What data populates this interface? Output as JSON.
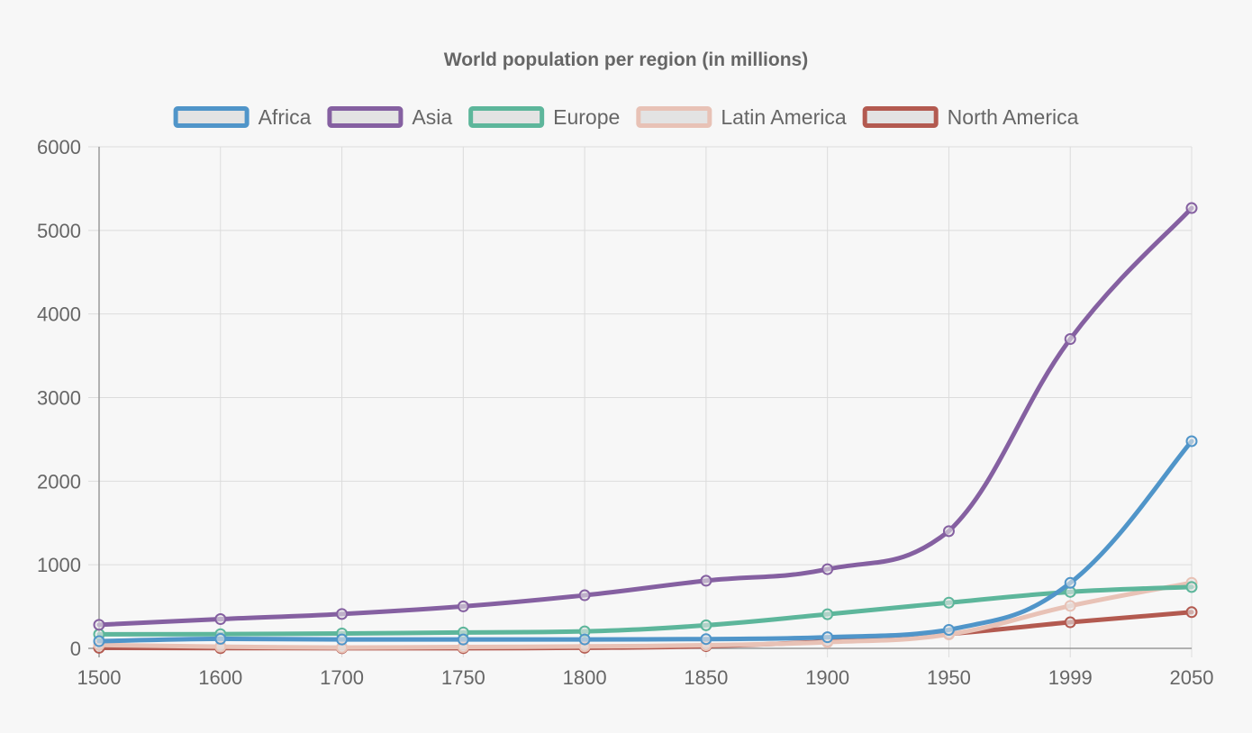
{
  "chart_data": {
    "type": "line",
    "title": "World population per region (in millions)",
    "categories": [
      "1500",
      "1600",
      "1700",
      "1750",
      "1800",
      "1850",
      "1900",
      "1950",
      "1999",
      "2050"
    ],
    "ylim": [
      0,
      6000
    ],
    "yticks": [
      0,
      1000,
      2000,
      3000,
      4000,
      5000,
      6000
    ],
    "grid": true,
    "legend_position": "top",
    "series": [
      {
        "name": "Africa",
        "color": "#5095c9",
        "values": [
          86,
          114,
          106,
          106,
          107,
          111,
          133,
          221,
          783,
          2478
        ]
      },
      {
        "name": "Asia",
        "color": "#8560a1",
        "values": [
          282,
          350,
          411,
          502,
          635,
          809,
          947,
          1402,
          3700,
          5267
        ]
      },
      {
        "name": "Europe",
        "color": "#5db69b",
        "values": [
          168,
          170,
          178,
          190,
          203,
          276,
          408,
          547,
          675,
          734
        ]
      },
      {
        "name": "Latin America",
        "color": "#e8c2b6",
        "values": [
          40,
          20,
          10,
          16,
          24,
          38,
          74,
          167,
          508,
          784
        ]
      },
      {
        "name": "North America",
        "color": "#b35a50",
        "values": [
          6,
          3,
          2,
          2,
          7,
          26,
          82,
          172,
          312,
          433
        ]
      }
    ]
  }
}
